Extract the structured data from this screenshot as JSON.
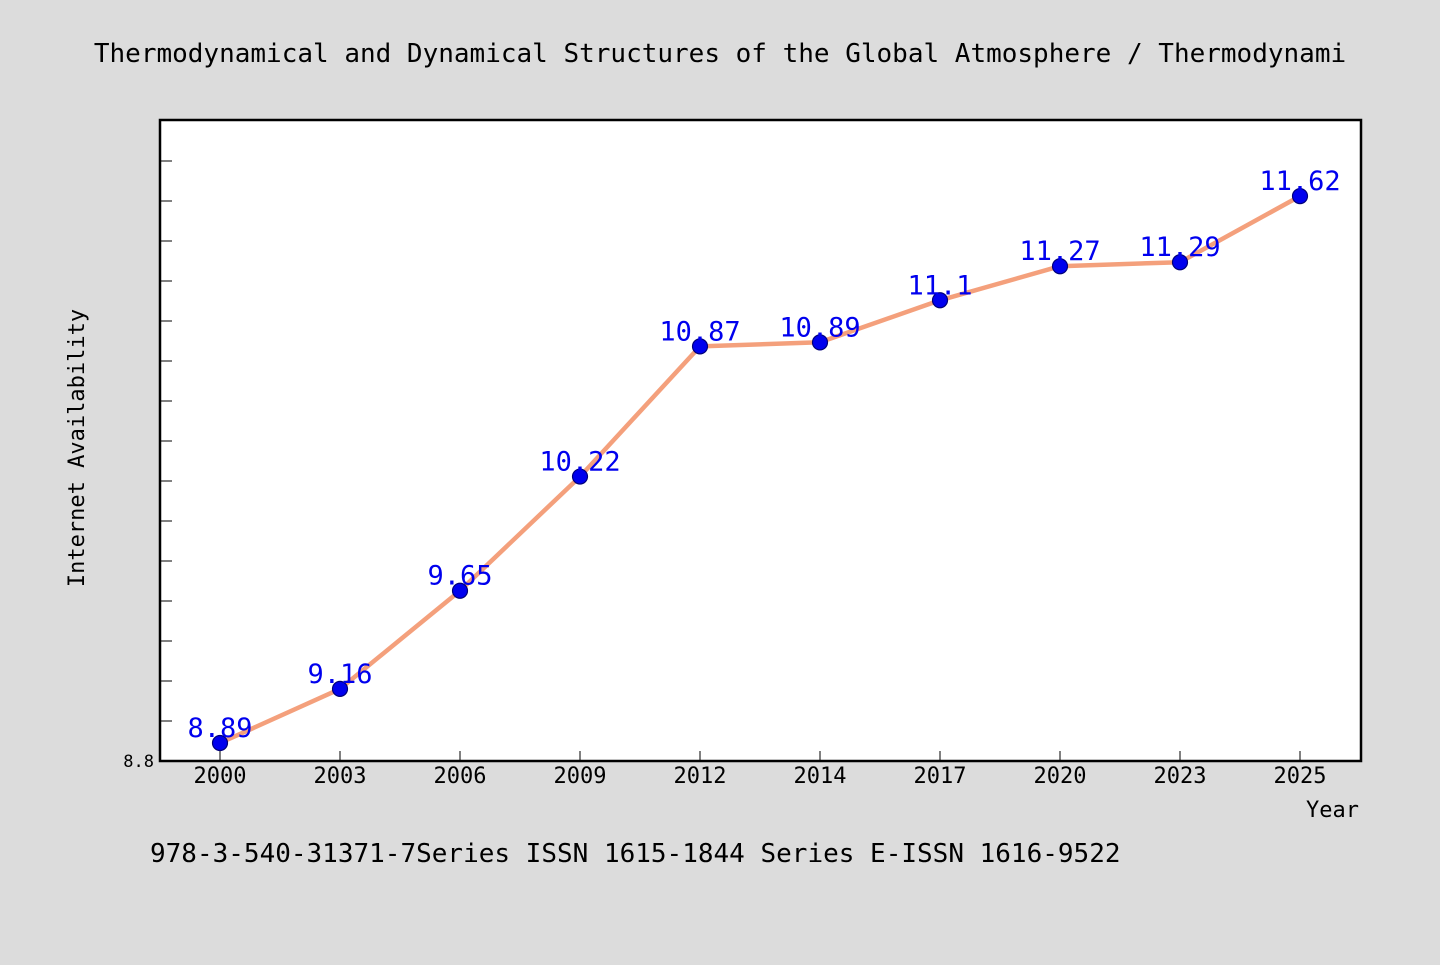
{
  "chart_data": {
    "type": "line",
    "title": "Thermodynamical and Dynamical Structures of the Global Atmosphere / Thermodynami",
    "xlabel": "Year",
    "ylabel": "Internet Availability",
    "footer": "978-3-540-31371-7Series ISSN 1615-1844 Series E-ISSN 1616-9522",
    "categories": [
      "2000",
      "2003",
      "2006",
      "2009",
      "2012",
      "2014",
      "2017",
      "2020",
      "2023",
      "2025"
    ],
    "values": [
      8.89,
      9.16,
      9.65,
      10.22,
      10.87,
      10.89,
      11.1,
      11.27,
      11.29,
      11.62
    ],
    "data_labels": [
      "8.89",
      "9.16",
      "9.65",
      "10.22",
      "10.87",
      "10.89",
      "11.1",
      "11.27",
      "11.29",
      "11.62"
    ],
    "y_tick_labels": [
      "8.8"
    ],
    "ylim": [
      8.8,
      12.0
    ],
    "grid": false,
    "colors": {
      "line": "#f4a07c",
      "marker": "#0000ee",
      "data_label": "#0000ee",
      "background": "#dcdcdc",
      "plot_background": "#ffffff"
    }
  }
}
